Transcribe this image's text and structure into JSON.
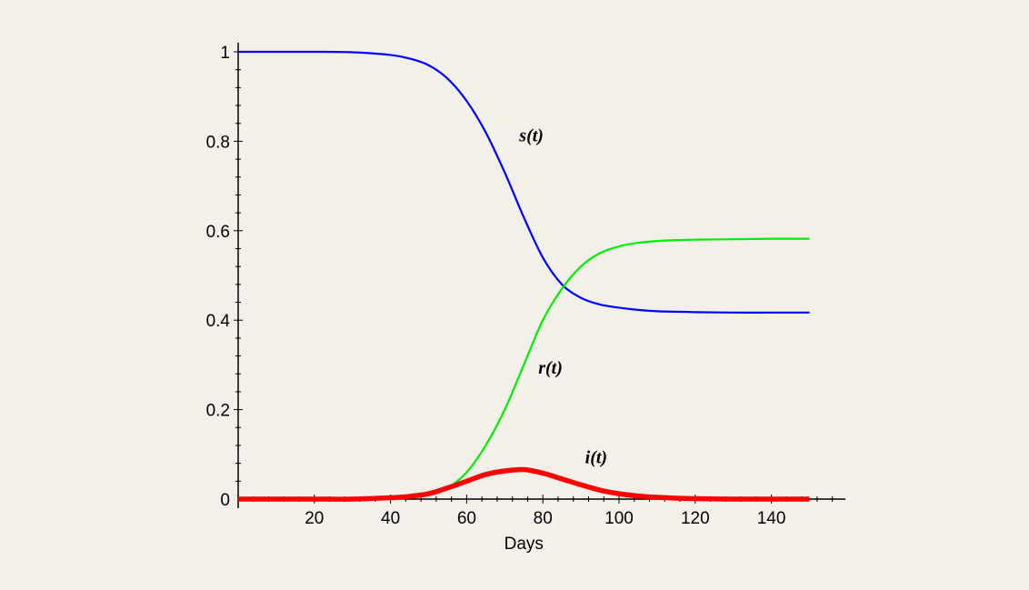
{
  "chart_data": {
    "type": "line",
    "title": "",
    "xlabel": "Days",
    "ylabel": "",
    "xlim": [
      0,
      150
    ],
    "ylim": [
      0,
      1
    ],
    "x_ticks": [
      20,
      40,
      60,
      80,
      100,
      120,
      140
    ],
    "y_ticks": [
      0,
      0.2,
      0.4,
      0.6,
      0.8,
      1
    ],
    "y_tick_labels": [
      "0",
      "0.2",
      "0.4",
      "0.6",
      "0.8",
      "1"
    ],
    "grid": false,
    "x": [
      0,
      10,
      20,
      30,
      40,
      45,
      50,
      55,
      60,
      65,
      70,
      75,
      80,
      85,
      90,
      95,
      100,
      105,
      110,
      115,
      120,
      130,
      140,
      150
    ],
    "series": [
      {
        "name": "s(t)",
        "color": "#0000ff",
        "values": [
          1.0,
          1.0,
          1.0,
          0.999,
          0.993,
          0.985,
          0.97,
          0.94,
          0.89,
          0.82,
          0.73,
          0.63,
          0.54,
          0.48,
          0.45,
          0.435,
          0.428,
          0.423,
          0.42,
          0.419,
          0.418,
          0.417,
          0.417,
          0.417
        ]
      },
      {
        "name": "r(t)",
        "color": "#00ee00",
        "values": [
          0.0,
          0.0,
          0.0,
          0.0,
          0.002,
          0.004,
          0.01,
          0.025,
          0.06,
          0.12,
          0.2,
          0.3,
          0.4,
          0.47,
          0.52,
          0.55,
          0.565,
          0.573,
          0.577,
          0.579,
          0.58,
          0.581,
          0.582,
          0.582
        ]
      },
      {
        "name": "i(t)",
        "color": "#ff0000",
        "values": [
          0.0,
          0.0,
          0.0,
          0.0,
          0.003,
          0.006,
          0.012,
          0.025,
          0.04,
          0.055,
          0.063,
          0.066,
          0.058,
          0.045,
          0.032,
          0.02,
          0.012,
          0.007,
          0.004,
          0.002,
          0.001,
          0.0,
          0.0,
          0.0
        ]
      }
    ],
    "annotations": [
      {
        "text": "s(t)",
        "x": 77,
        "y": 0.8
      },
      {
        "text": "r(t)",
        "x": 82,
        "y": 0.28
      },
      {
        "text": "i(t)",
        "x": 94,
        "y": 0.08
      }
    ]
  }
}
